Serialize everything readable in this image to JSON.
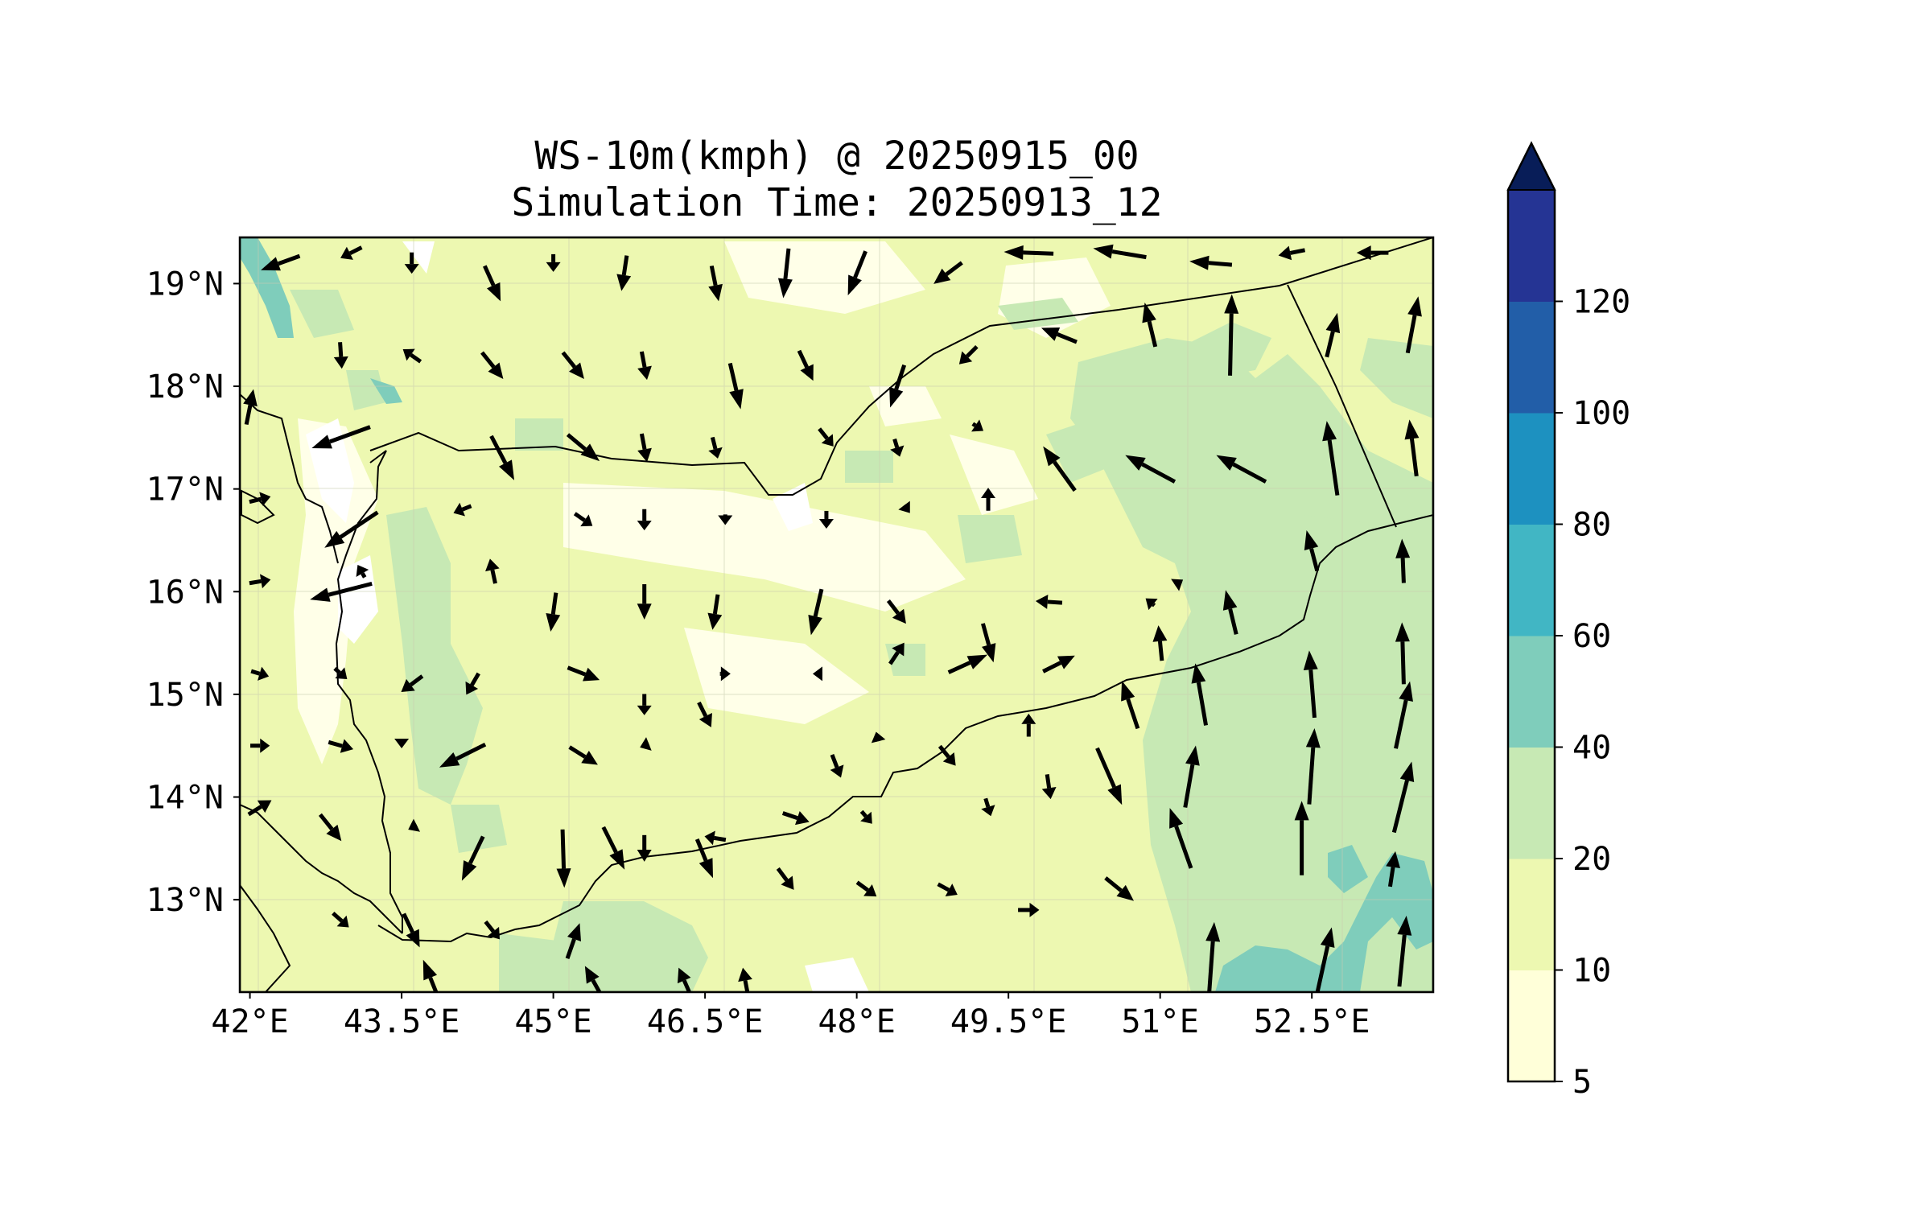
{
  "title": {
    "line1": "WS-10m(kmph) @ 20250915_00",
    "line2": "Simulation Time: 20250913_12"
  },
  "map": {
    "lon_range": [
      41.9,
      53.7
    ],
    "lat_range": [
      12.1,
      19.45
    ],
    "lon_ticks": [
      {
        "value": 42.0,
        "label": "42°E"
      },
      {
        "value": 43.5,
        "label": "43.5°E"
      },
      {
        "value": 45.0,
        "label": "45°E"
      },
      {
        "value": 46.5,
        "label": "46.5°E"
      },
      {
        "value": 48.0,
        "label": "48°E"
      },
      {
        "value": 49.5,
        "label": "49.5°E"
      },
      {
        "value": 51.0,
        "label": "51°E"
      },
      {
        "value": 52.5,
        "label": "52.5°E"
      }
    ],
    "lat_ticks": [
      {
        "value": 19,
        "label": "19°N"
      },
      {
        "value": 18,
        "label": "18°N"
      },
      {
        "value": 17,
        "label": "17°N"
      },
      {
        "value": 16,
        "label": "16°N"
      },
      {
        "value": 15,
        "label": "15°N"
      },
      {
        "value": 14,
        "label": "14°N"
      },
      {
        "value": 13,
        "label": "13°N"
      }
    ]
  },
  "colorbar": {
    "levels": [
      5,
      10,
      20,
      40,
      60,
      80,
      100,
      120
    ],
    "labels": [
      "5",
      "10",
      "20",
      "40",
      "60",
      "80",
      "100",
      "120"
    ],
    "colors": [
      "#ffffd9",
      "#edf8b1",
      "#c7e9b4",
      "#7fcdbb",
      "#41b6c4",
      "#1d91c0",
      "#225ea8",
      "#253494"
    ],
    "extend_color": "#081d58"
  },
  "chart_data": {
    "type": "wind-vector-map",
    "variable": "WS-10m(kmph)",
    "vectors": [
      {
        "lon": 42.3,
        "lat": 19.2,
        "u": -2.2,
        "v": -0.8
      },
      {
        "lon": 43.0,
        "lat": 19.3,
        "u": -1.2,
        "v": -0.6
      },
      {
        "lon": 43.6,
        "lat": 19.2,
        "u": 0,
        "v": -1.2
      },
      {
        "lon": 44.4,
        "lat": 19.0,
        "u": 0.9,
        "v": -2.0
      },
      {
        "lon": 45.0,
        "lat": 19.2,
        "u": 0,
        "v": -1.0
      },
      {
        "lon": 45.7,
        "lat": 19.1,
        "u": -0.3,
        "v": -2.0
      },
      {
        "lon": 46.6,
        "lat": 19.0,
        "u": 0.4,
        "v": -2.0
      },
      {
        "lon": 47.3,
        "lat": 19.1,
        "u": -0.3,
        "v": -2.8
      },
      {
        "lon": 48.0,
        "lat": 19.1,
        "u": -1.0,
        "v": -2.5
      },
      {
        "lon": 48.9,
        "lat": 19.1,
        "u": -1.6,
        "v": -1.2
      },
      {
        "lon": 49.7,
        "lat": 19.3,
        "u": -2.8,
        "v": 0.1
      },
      {
        "lon": 50.6,
        "lat": 19.3,
        "u": -3.0,
        "v": 0.5
      },
      {
        "lon": 51.5,
        "lat": 19.2,
        "u": -2.4,
        "v": 0.2
      },
      {
        "lon": 52.3,
        "lat": 19.3,
        "u": -1.5,
        "v": -0.3
      },
      {
        "lon": 53.1,
        "lat": 19.3,
        "u": -1.8,
        "v": 0.0
      },
      {
        "lon": 42.9,
        "lat": 18.3,
        "u": 0.1,
        "v": -1.5
      },
      {
        "lon": 43.6,
        "lat": 18.3,
        "u": -1.0,
        "v": 0.7
      },
      {
        "lon": 44.4,
        "lat": 18.2,
        "u": 1.2,
        "v": -1.5
      },
      {
        "lon": 45.2,
        "lat": 18.2,
        "u": 1.2,
        "v": -1.5
      },
      {
        "lon": 45.9,
        "lat": 18.2,
        "u": 0.3,
        "v": -1.6
      },
      {
        "lon": 46.8,
        "lat": 18.0,
        "u": 0.6,
        "v": -2.6
      },
      {
        "lon": 47.5,
        "lat": 18.2,
        "u": 0.8,
        "v": -1.7
      },
      {
        "lon": 48.4,
        "lat": 18.0,
        "u": -0.8,
        "v": -2.4
      },
      {
        "lon": 49.1,
        "lat": 18.3,
        "u": -1.0,
        "v": -1.0
      },
      {
        "lon": 50.0,
        "lat": 18.5,
        "u": -2.0,
        "v": 0.8
      },
      {
        "lon": 50.9,
        "lat": 18.6,
        "u": -0.6,
        "v": 2.5
      },
      {
        "lon": 51.7,
        "lat": 18.5,
        "u": 0.1,
        "v": 4.6
      },
      {
        "lon": 52.7,
        "lat": 18.5,
        "u": 0.6,
        "v": 2.5
      },
      {
        "lon": 53.5,
        "lat": 18.6,
        "u": 0.6,
        "v": 3.2
      },
      {
        "lon": 42.0,
        "lat": 17.8,
        "u": 0.4,
        "v": 2.0
      },
      {
        "lon": 42.9,
        "lat": 17.5,
        "u": -3.3,
        "v": -1.2
      },
      {
        "lon": 44.5,
        "lat": 17.3,
        "u": 1.3,
        "v": -2.5
      },
      {
        "lon": 45.3,
        "lat": 17.4,
        "u": 1.8,
        "v": -1.5
      },
      {
        "lon": 45.9,
        "lat": 17.4,
        "u": 0.3,
        "v": -1.6
      },
      {
        "lon": 46.6,
        "lat": 17.4,
        "u": 0.3,
        "v": -1.2
      },
      {
        "lon": 47.7,
        "lat": 17.5,
        "u": 0.8,
        "v": -1.0
      },
      {
        "lon": 48.4,
        "lat": 17.4,
        "u": 0.3,
        "v": -1.0
      },
      {
        "lon": 49.2,
        "lat": 17.6,
        "u": 0.6,
        "v": -0.4
      },
      {
        "lon": 50.0,
        "lat": 17.2,
        "u": -1.8,
        "v": 2.5
      },
      {
        "lon": 50.9,
        "lat": 17.2,
        "u": -2.8,
        "v": 1.5
      },
      {
        "lon": 51.8,
        "lat": 17.2,
        "u": -2.8,
        "v": 1.5
      },
      {
        "lon": 52.7,
        "lat": 17.3,
        "u": -0.6,
        "v": 4.2
      },
      {
        "lon": 53.5,
        "lat": 17.4,
        "u": -0.4,
        "v": 3.2
      },
      {
        "lon": 42.1,
        "lat": 16.9,
        "u": 1.2,
        "v": 0.3
      },
      {
        "lon": 43.0,
        "lat": 16.6,
        "u": -3.0,
        "v": -2.0
      },
      {
        "lon": 44.1,
        "lat": 16.8,
        "u": -1.0,
        "v": -0.4
      },
      {
        "lon": 45.3,
        "lat": 16.7,
        "u": 1.0,
        "v": -0.7
      },
      {
        "lon": 45.9,
        "lat": 16.7,
        "u": 0,
        "v": -1.2
      },
      {
        "lon": 46.7,
        "lat": 16.7,
        "u": 0,
        "v": -0.6
      },
      {
        "lon": 47.7,
        "lat": 16.7,
        "u": 0,
        "v": -1.0
      },
      {
        "lon": 48.5,
        "lat": 16.8,
        "u": 0.3,
        "v": -0.4
      },
      {
        "lon": 49.3,
        "lat": 16.9,
        "u": 0,
        "v": 1.3
      },
      {
        "lon": 52.5,
        "lat": 16.4,
        "u": -0.6,
        "v": 2.3
      },
      {
        "lon": 53.4,
        "lat": 16.3,
        "u": -0.1,
        "v": 2.5
      },
      {
        "lon": 42.1,
        "lat": 16.1,
        "u": 1.2,
        "v": 0.2
      },
      {
        "lon": 42.9,
        "lat": 16.0,
        "u": -3.5,
        "v": -0.9
      },
      {
        "lon": 43.1,
        "lat": 16.2,
        "u": -0.4,
        "v": 0.7
      },
      {
        "lon": 44.4,
        "lat": 16.2,
        "u": -0.3,
        "v": 1.4
      },
      {
        "lon": 45.0,
        "lat": 15.8,
        "u": -0.3,
        "v": -2.2
      },
      {
        "lon": 45.9,
        "lat": 15.9,
        "u": 0,
        "v": -2.0
      },
      {
        "lon": 46.6,
        "lat": 15.8,
        "u": -0.3,
        "v": -2.0
      },
      {
        "lon": 47.6,
        "lat": 15.8,
        "u": -0.6,
        "v": -2.6
      },
      {
        "lon": 48.4,
        "lat": 15.8,
        "u": 1.0,
        "v": -1.3
      },
      {
        "lon": 48.4,
        "lat": 15.4,
        "u": 0.8,
        "v": 1.2
      },
      {
        "lon": 49.3,
        "lat": 15.5,
        "u": 0.6,
        "v": -2.2
      },
      {
        "lon": 49.9,
        "lat": 15.9,
        "u": -1.5,
        "v": 0.1
      },
      {
        "lon": 50.9,
        "lat": 15.9,
        "u": -0.5,
        "v": 0.4
      },
      {
        "lon": 51.2,
        "lat": 16.1,
        "u": 0.3,
        "v": 0.2
      },
      {
        "lon": 51.0,
        "lat": 15.5,
        "u": -0.2,
        "v": 2.0
      },
      {
        "lon": 51.7,
        "lat": 15.8,
        "u": -0.6,
        "v": 2.5
      },
      {
        "lon": 52.5,
        "lat": 15.1,
        "u": -0.3,
        "v": 3.8
      },
      {
        "lon": 53.4,
        "lat": 15.4,
        "u": -0.1,
        "v": 3.5
      },
      {
        "lon": 42.1,
        "lat": 15.2,
        "u": 1.0,
        "v": -0.3
      },
      {
        "lon": 42.9,
        "lat": 15.2,
        "u": 0.7,
        "v": -0.6
      },
      {
        "lon": 43.6,
        "lat": 15.1,
        "u": -1.2,
        "v": -0.9
      },
      {
        "lon": 44.2,
        "lat": 15.1,
        "u": -0.7,
        "v": -1.2
      },
      {
        "lon": 45.3,
        "lat": 15.2,
        "u": 1.8,
        "v": -0.7
      },
      {
        "lon": 45.9,
        "lat": 14.9,
        "u": 0,
        "v": -1.2
      },
      {
        "lon": 46.7,
        "lat": 15.2,
        "u": 0.6,
        "v": 0.0
      },
      {
        "lon": 47.6,
        "lat": 15.2,
        "u": -0.4,
        "v": 0
      },
      {
        "lon": 49.1,
        "lat": 15.3,
        "u": 2.2,
        "v": 1.0
      },
      {
        "lon": 50.0,
        "lat": 15.3,
        "u": 1.8,
        "v": 0.9
      },
      {
        "lon": 50.7,
        "lat": 14.9,
        "u": -0.9,
        "v": 2.7
      },
      {
        "lon": 51.4,
        "lat": 15.0,
        "u": -0.6,
        "v": 3.5
      },
      {
        "lon": 52.5,
        "lat": 14.3,
        "u": 0.3,
        "v": 4.3
      },
      {
        "lon": 53.4,
        "lat": 14.8,
        "u": 0.8,
        "v": 3.8
      },
      {
        "lon": 42.1,
        "lat": 14.5,
        "u": 1.1,
        "v": 0
      },
      {
        "lon": 42.9,
        "lat": 14.5,
        "u": 1.4,
        "v": -0.4
      },
      {
        "lon": 43.5,
        "lat": 14.5,
        "u": 0,
        "v": -0.3
      },
      {
        "lon": 44.1,
        "lat": 14.4,
        "u": -2.6,
        "v": -1.3
      },
      {
        "lon": 45.3,
        "lat": 14.4,
        "u": 1.6,
        "v": -1.0
      },
      {
        "lon": 45.9,
        "lat": 14.5,
        "u": -0.5,
        "v": -0.2
      },
      {
        "lon": 46.5,
        "lat": 14.8,
        "u": 0.7,
        "v": -1.4
      },
      {
        "lon": 47.8,
        "lat": 14.3,
        "u": 0.5,
        "v": -1.3
      },
      {
        "lon": 48.2,
        "lat": 14.6,
        "u": -0.1,
        "v": 0.4
      },
      {
        "lon": 48.9,
        "lat": 14.4,
        "u": 0.9,
        "v": -1.1
      },
      {
        "lon": 49.7,
        "lat": 14.7,
        "u": 0,
        "v": 1.3
      },
      {
        "lon": 50.5,
        "lat": 14.2,
        "u": 1.4,
        "v": -3.2
      },
      {
        "lon": 51.3,
        "lat": 14.2,
        "u": 0.6,
        "v": 3.5
      },
      {
        "lon": 52.4,
        "lat": 13.6,
        "u": 0,
        "v": 4.2
      },
      {
        "lon": 53.4,
        "lat": 14.0,
        "u": 1.0,
        "v": 4.0
      },
      {
        "lon": 42.1,
        "lat": 13.9,
        "u": 1.3,
        "v": 0.8
      },
      {
        "lon": 42.8,
        "lat": 13.7,
        "u": 1.2,
        "v": -1.5
      },
      {
        "lon": 43.6,
        "lat": 13.7,
        "u": -0.4,
        "v": -0.2
      },
      {
        "lon": 44.2,
        "lat": 13.4,
        "u": -1.2,
        "v": -2.5
      },
      {
        "lon": 45.1,
        "lat": 13.4,
        "u": 0.1,
        "v": -3.3
      },
      {
        "lon": 45.9,
        "lat": 13.5,
        "u": 0,
        "v": -1.5
      },
      {
        "lon": 46.6,
        "lat": 13.6,
        "u": -1.2,
        "v": 0.2
      },
      {
        "lon": 47.4,
        "lat": 13.8,
        "u": 1.5,
        "v": -0.5
      },
      {
        "lon": 48.1,
        "lat": 13.8,
        "u": 0.6,
        "v": -0.7
      },
      {
        "lon": 49.3,
        "lat": 13.9,
        "u": 0.3,
        "v": -1.0
      },
      {
        "lon": 49.9,
        "lat": 14.1,
        "u": 0.2,
        "v": -1.4
      },
      {
        "lon": 51.2,
        "lat": 13.6,
        "u": -1.2,
        "v": 3.4
      },
      {
        "lon": 53.3,
        "lat": 13.3,
        "u": 0.3,
        "v": 2.0
      },
      {
        "lon": 42.9,
        "lat": 12.8,
        "u": 0.9,
        "v": -0.8
      },
      {
        "lon": 43.6,
        "lat": 12.7,
        "u": 0.9,
        "v": -1.9
      },
      {
        "lon": 44.4,
        "lat": 12.7,
        "u": 0.8,
        "v": -1.0
      },
      {
        "lon": 45.2,
        "lat": 12.6,
        "u": 0.7,
        "v": 2.0
      },
      {
        "lon": 45.6,
        "lat": 13.5,
        "u": 1.2,
        "v": -2.4
      },
      {
        "lon": 46.5,
        "lat": 13.4,
        "u": 0.9,
        "v": -2.2
      },
      {
        "lon": 47.3,
        "lat": 13.2,
        "u": 0.9,
        "v": -1.2
      },
      {
        "lon": 48.1,
        "lat": 13.1,
        "u": 1.1,
        "v": -0.8
      },
      {
        "lon": 48.9,
        "lat": 13.1,
        "u": 1.1,
        "v": -0.6
      },
      {
        "lon": 49.7,
        "lat": 12.9,
        "u": 1.2,
        "v": 0
      },
      {
        "lon": 50.6,
        "lat": 13.1,
        "u": 1.6,
        "v": -1.3
      },
      {
        "lon": 51.5,
        "lat": 12.3,
        "u": 0.4,
        "v": 5.6
      },
      {
        "lon": 52.6,
        "lat": 12.3,
        "u": 1.1,
        "v": 5.0
      },
      {
        "lon": 53.4,
        "lat": 12.5,
        "u": 0.4,
        "v": 4.0
      },
      {
        "lon": 43.8,
        "lat": 12.2,
        "u": -1.0,
        "v": 2.5
      },
      {
        "lon": 45.4,
        "lat": 12.2,
        "u": -1.0,
        "v": 1.8
      },
      {
        "lon": 46.3,
        "lat": 12.2,
        "u": -0.7,
        "v": 1.6
      },
      {
        "lon": 46.9,
        "lat": 12.2,
        "u": -0.3,
        "v": 1.6
      }
    ]
  }
}
